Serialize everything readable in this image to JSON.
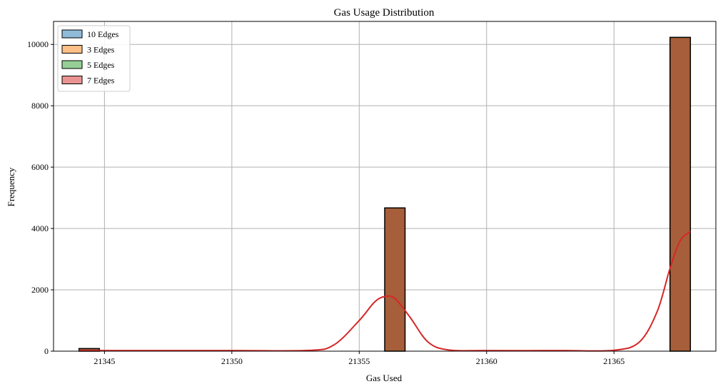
{
  "chart_data": {
    "type": "histogram",
    "title": "Gas Usage Distribution",
    "xlabel": "Gas Used",
    "ylabel": "Frequency",
    "xlim": [
      21343,
      21369
    ],
    "ylim": [
      0,
      10750
    ],
    "xticks": [
      21345,
      21350,
      21355,
      21360,
      21365
    ],
    "yticks": [
      0,
      2000,
      4000,
      6000,
      8000,
      10000
    ],
    "grid": true,
    "legend_position": "top-left",
    "bin_width": 0.8,
    "bins": [
      {
        "start": 21344.0,
        "end": 21344.8,
        "count": 85
      },
      {
        "start": 21356.0,
        "end": 21356.8,
        "count": 4670
      },
      {
        "start": 21367.2,
        "end": 21368.0,
        "count": 10230
      }
    ],
    "series": [
      {
        "name": "10 Edges",
        "color": "#1f77b4"
      },
      {
        "name": "3 Edges",
        "color": "#ff7f0e"
      },
      {
        "name": "5 Edges",
        "color": "#2ca02c"
      },
      {
        "name": "7 Edges",
        "color": "#d62728"
      }
    ],
    "overlap_fill_color": "#a65f3a",
    "kde": {
      "color": "#d62728",
      "points": [
        [
          21344.0,
          20
        ],
        [
          21345.0,
          20
        ],
        [
          21350.0,
          20
        ],
        [
          21353.0,
          25
        ],
        [
          21354.0,
          200
        ],
        [
          21355.0,
          1000
        ],
        [
          21355.6,
          1600
        ],
        [
          21356.0,
          1780
        ],
        [
          21356.4,
          1720
        ],
        [
          21357.0,
          1100
        ],
        [
          21357.7,
          300
        ],
        [
          21358.5,
          40
        ],
        [
          21360.0,
          20
        ],
        [
          21363.0,
          20
        ],
        [
          21365.0,
          30
        ],
        [
          21366.0,
          300
        ],
        [
          21366.7,
          1300
        ],
        [
          21367.2,
          2700
        ],
        [
          21367.6,
          3600
        ],
        [
          21368.0,
          3900
        ]
      ]
    }
  }
}
